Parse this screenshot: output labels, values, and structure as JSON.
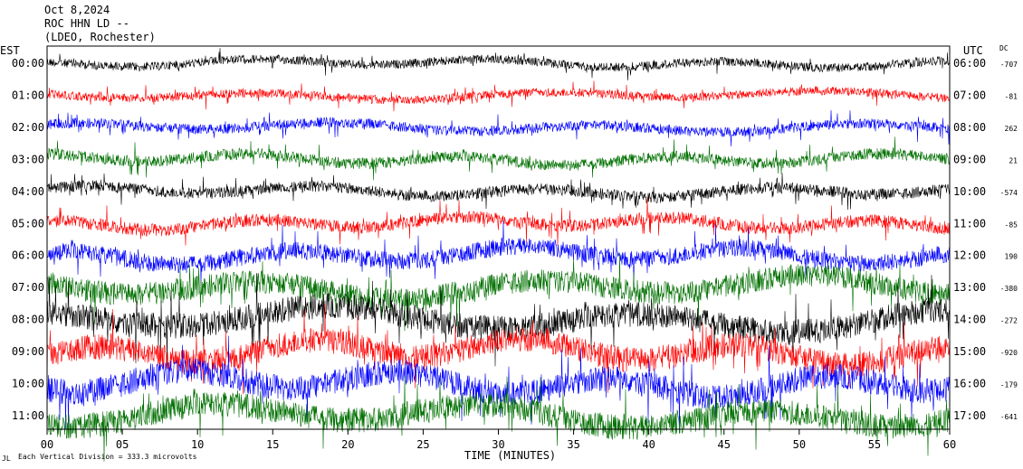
{
  "header": {
    "date": "Oct 8,2024",
    "station": "ROC HHN LD --",
    "network": "(LDEO, Rochester)"
  },
  "chart_data": {
    "type": "line",
    "title": "",
    "xlabel": "TIME (MINUTES)",
    "ylabel_left": "EST",
    "ylabel_right": "UTC",
    "dc_label": "DC",
    "x_ticks": [
      "00",
      "05",
      "10",
      "15",
      "20",
      "25",
      "30",
      "35",
      "40",
      "45",
      "50",
      "55",
      "60"
    ],
    "xlim": [
      0,
      60
    ],
    "est_labels": [
      "00:00",
      "01:00",
      "02:00",
      "03:00",
      "04:00",
      "05:00",
      "06:00",
      "07:00",
      "08:00",
      "09:00",
      "10:00",
      "11:00"
    ],
    "utc_labels": [
      "06:00",
      "07:00",
      "08:00",
      "09:00",
      "10:00",
      "11:00",
      "12:00",
      "13:00",
      "14:00",
      "15:00",
      "16:00",
      "17:00"
    ],
    "dc_values": [
      "-707",
      "-81",
      "262",
      "21",
      "-574",
      "-85",
      "190",
      "-380",
      "-272",
      "-920",
      "-179",
      "-641"
    ],
    "trace_colors": [
      "#000000",
      "#ff0000",
      "#0000ff",
      "#007000"
    ],
    "trace_amplitude": [
      0.35,
      0.35,
      0.4,
      0.45,
      0.45,
      0.5,
      0.7,
      0.9,
      1.0,
      1.0,
      1.0,
      1.0
    ],
    "footer_note": "Each Vertical Division = 333.3 microvolts",
    "corner_mark": "JL"
  }
}
